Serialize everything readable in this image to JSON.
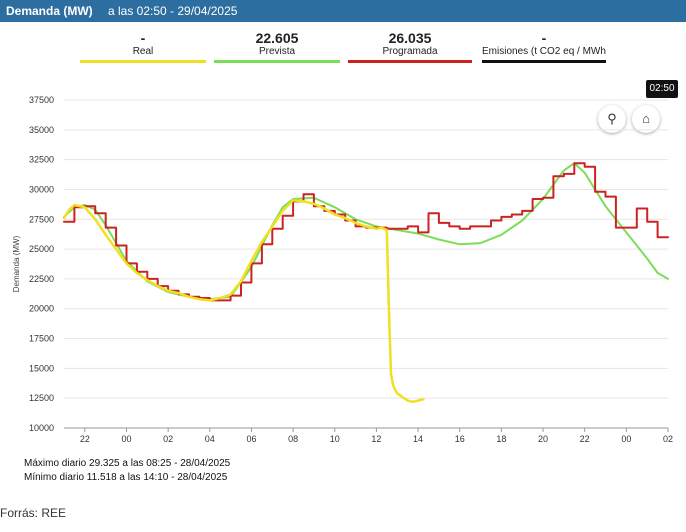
{
  "header": {
    "title": "Demanda (MW)",
    "subtitle": "a las 02:50 - 29/04/2025"
  },
  "legend": [
    {
      "value": "-",
      "label": "Real",
      "color": "#f0e020"
    },
    {
      "value": "22.605",
      "label": "Prevista",
      "color": "#7ddc5a"
    },
    {
      "value": "26.035",
      "label": "Programada",
      "color": "#cc2222"
    },
    {
      "value": "-",
      "label": "Emisiones (t CO2 eq / MWh)",
      "color": "#111111"
    }
  ],
  "tooltip": "02:50",
  "buttons": {
    "wind": "wind-turbine-icon",
    "factory": "factory-icon"
  },
  "footer": {
    "max": "Máximo diario 29.325 a las 08:25 - 28/04/2025",
    "min": "Mínimo diario 11.518 a las 14:10 - 28/04/2025"
  },
  "source": "Forrás: REE",
  "chart_data": {
    "type": "line",
    "title": "",
    "ylabel": "Demanda (MW)",
    "xlabel": "",
    "ylim": [
      10000,
      37500
    ],
    "yticks": [
      10000,
      12500,
      15000,
      17500,
      20000,
      22500,
      25000,
      27500,
      30000,
      32500,
      35000,
      37500
    ],
    "xlim": [
      21,
      50
    ],
    "xticks": [
      {
        "x": 22,
        "label": "22"
      },
      {
        "x": 24,
        "label": "00"
      },
      {
        "x": 26,
        "label": "02"
      },
      {
        "x": 28,
        "label": "04"
      },
      {
        "x": 30,
        "label": "06"
      },
      {
        "x": 32,
        "label": "08"
      },
      {
        "x": 34,
        "label": "10"
      },
      {
        "x": 36,
        "label": "12"
      },
      {
        "x": 38,
        "label": "14"
      },
      {
        "x": 40,
        "label": "16"
      },
      {
        "x": 42,
        "label": "18"
      },
      {
        "x": 44,
        "label": "20"
      },
      {
        "x": 46,
        "label": "22"
      },
      {
        "x": 48,
        "label": "00"
      },
      {
        "x": 50,
        "label": "02"
      }
    ],
    "series": [
      {
        "name": "Real",
        "color": "#f0e020",
        "width": 2.5,
        "x": [
          21,
          21.25,
          21.5,
          22,
          22.5,
          23,
          23.5,
          24,
          24.5,
          25,
          25.5,
          26,
          26.5,
          27,
          27.5,
          28,
          28.5,
          29,
          29.5,
          30,
          30.5,
          31,
          31.5,
          32,
          32.5,
          33,
          33.5,
          34,
          34.5,
          35,
          35.5,
          36,
          36.25,
          36.5,
          36.6,
          36.7,
          36.8,
          36.9,
          37,
          37.25,
          37.5,
          37.75,
          38,
          38.25
        ],
        "y": [
          27600,
          28300,
          28700,
          28500,
          27500,
          26200,
          25000,
          23800,
          23000,
          22400,
          21900,
          21500,
          21300,
          21000,
          20800,
          20700,
          20900,
          21200,
          22300,
          24000,
          25600,
          26900,
          28200,
          29100,
          29000,
          28800,
          28400,
          27900,
          27600,
          27200,
          26900,
          26700,
          26800,
          26600,
          20000,
          14500,
          13600,
          13200,
          12900,
          12600,
          12300,
          12200,
          12300,
          12400
        ]
      },
      {
        "name": "Prevista",
        "color": "#7ddc5a",
        "width": 2,
        "x": [
          21,
          21.5,
          22,
          22.5,
          23,
          23.5,
          24,
          25,
          26,
          27,
          28,
          29,
          30,
          31,
          31.5,
          32,
          33,
          34,
          35,
          36,
          37,
          38,
          39,
          40,
          41,
          42,
          43,
          44,
          45,
          45.5,
          46,
          46.5,
          47,
          48,
          49,
          49.5,
          50
        ],
        "y": [
          27700,
          28500,
          28700,
          28300,
          27000,
          25500,
          24000,
          22300,
          21400,
          21000,
          20800,
          21000,
          23500,
          27000,
          28500,
          29200,
          29300,
          28500,
          27500,
          26900,
          26600,
          26300,
          25800,
          25400,
          25500,
          26200,
          27400,
          29200,
          31600,
          32200,
          31400,
          30000,
          28600,
          26400,
          24200,
          23000,
          22500
        ]
      },
      {
        "name": "Programada",
        "color": "#cc2222",
        "width": 2,
        "step": true,
        "x": [
          21,
          21.5,
          22,
          22.5,
          23,
          23.5,
          24,
          24.5,
          25,
          25.5,
          26,
          26.5,
          27,
          27.5,
          28,
          28.5,
          29,
          29.5,
          30,
          30.5,
          31,
          31.5,
          32,
          32.5,
          33,
          33.5,
          34,
          34.5,
          35,
          35.5,
          36,
          36.5,
          37,
          37.5,
          38,
          38.5,
          39,
          39.5,
          40,
          40.5,
          41,
          41.5,
          42,
          42.5,
          43,
          43.5,
          44,
          44.5,
          45,
          45.5,
          46,
          46.5,
          47,
          47.5,
          48,
          48.5,
          49,
          49.5,
          50
        ],
        "y": [
          27300,
          28500,
          28600,
          28000,
          26800,
          25300,
          23800,
          23100,
          22500,
          21900,
          21500,
          21200,
          21000,
          20900,
          20700,
          20700,
          21100,
          22200,
          23800,
          25400,
          26700,
          27800,
          29000,
          29600,
          28600,
          28200,
          27900,
          27400,
          26900,
          26800,
          26800,
          26700,
          26700,
          26900,
          26400,
          28000,
          27200,
          26900,
          26700,
          26900,
          26900,
          27400,
          27700,
          27900,
          28200,
          29200,
          29300,
          31100,
          31300,
          32200,
          31900,
          29800,
          29400,
          26800,
          26800,
          28400,
          27300,
          26000,
          26000
        ]
      }
    ]
  }
}
